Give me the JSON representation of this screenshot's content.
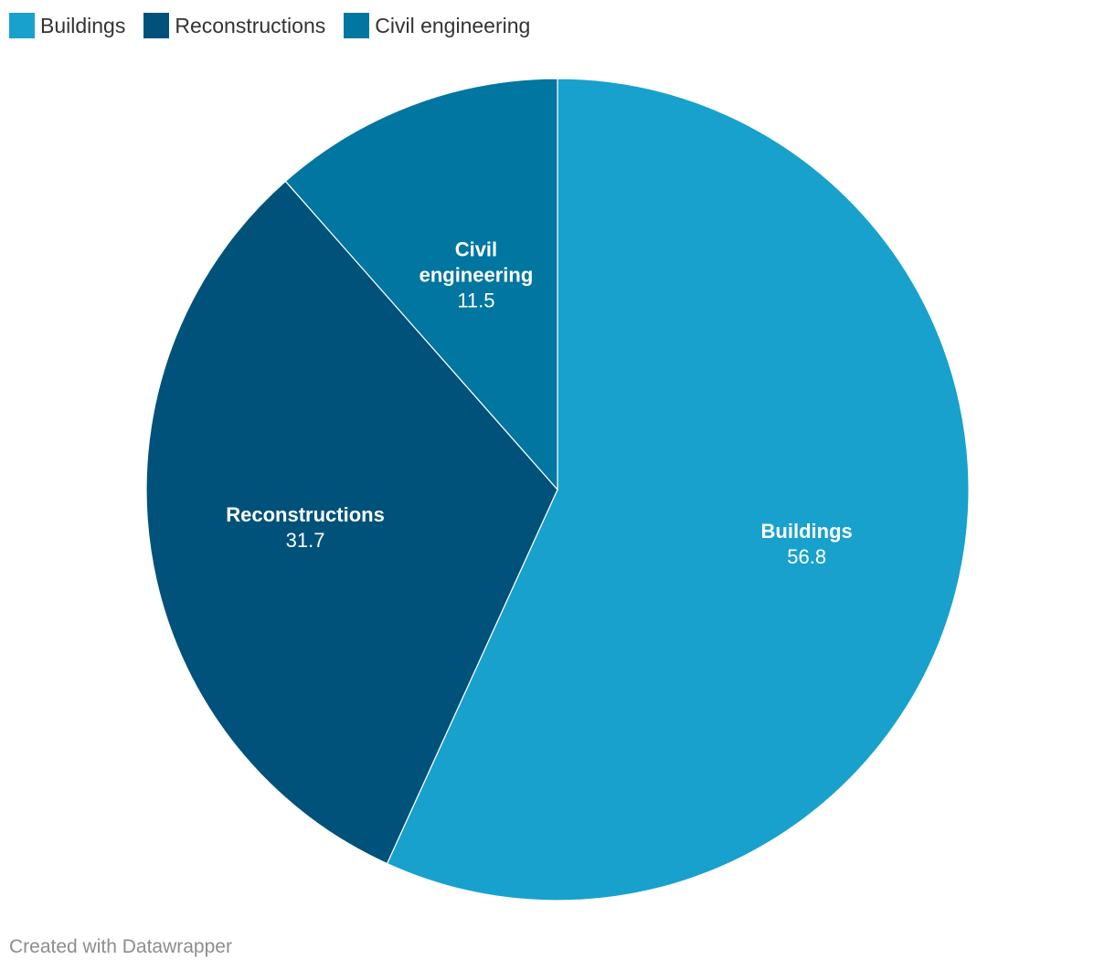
{
  "chart_data": {
    "type": "pie",
    "title": "",
    "categories": [
      "Buildings",
      "Reconstructions",
      "Civil engineering"
    ],
    "values": [
      56.8,
      31.7,
      11.5
    ],
    "value_labels": [
      "56.8",
      "31.7",
      "11.5"
    ],
    "colors": [
      "#18a1cd",
      "#00527a",
      "#0076a0"
    ],
    "start": "12 o'clock",
    "direction": "clockwise",
    "legend": "top-left"
  },
  "footer": {
    "credit": "Created with Datawrapper"
  }
}
